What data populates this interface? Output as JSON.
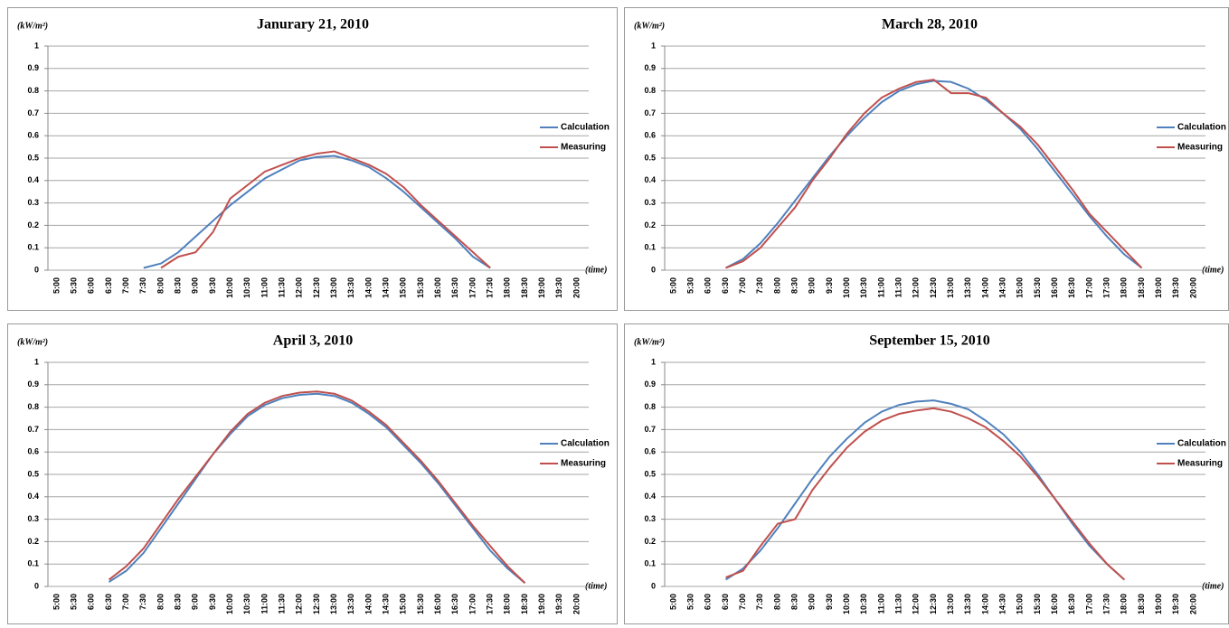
{
  "chart_data": [
    {
      "type": "line",
      "title": "Janurary  21,  2010",
      "y_label": "(kW/m²)",
      "x_label": "(time)",
      "categories": [
        "5:00",
        "5:30",
        "6:00",
        "6:30",
        "7:00",
        "7:30",
        "8:00",
        "8:30",
        "9:00",
        "9:30",
        "10:00",
        "10:30",
        "11:00",
        "11:30",
        "12:00",
        "12:30",
        "13:00",
        "13:30",
        "14:00",
        "14:30",
        "15:00",
        "15:30",
        "16:00",
        "16:30",
        "17:00",
        "17:30",
        "18:00",
        "18:30",
        "19:00",
        "19:30",
        "20:00"
      ],
      "ylim": [
        0,
        1
      ],
      "yticks": [
        0,
        0.1,
        0.2,
        0.3,
        0.4,
        0.5,
        0.6,
        0.7,
        0.8,
        0.9,
        1
      ],
      "grid": true,
      "legend": "right",
      "series": [
        {
          "name": "Calculation",
          "color": "#4f81bd",
          "values": [
            null,
            null,
            null,
            null,
            null,
            0.01,
            0.03,
            0.08,
            0.15,
            0.22,
            0.29,
            0.35,
            0.41,
            0.45,
            0.49,
            0.505,
            0.51,
            0.49,
            0.46,
            0.41,
            0.35,
            0.28,
            0.21,
            0.14,
            0.06,
            0.01,
            null,
            null,
            null,
            null,
            null
          ]
        },
        {
          "name": "Measuring",
          "color": "#c0504d",
          "values": [
            null,
            null,
            null,
            null,
            null,
            null,
            0.01,
            0.06,
            0.08,
            0.17,
            0.32,
            0.38,
            0.44,
            0.47,
            0.5,
            0.52,
            0.53,
            0.5,
            0.47,
            0.43,
            0.37,
            0.29,
            0.22,
            0.15,
            0.08,
            0.01,
            null,
            null,
            null,
            null,
            null
          ]
        }
      ]
    },
    {
      "type": "line",
      "title": "March  28,  2010",
      "y_label": "(kW/m²)",
      "x_label": "(time)",
      "categories": [
        "5:00",
        "5:30",
        "6:00",
        "6:30",
        "7:00",
        "7:30",
        "8:00",
        "8:30",
        "9:00",
        "9:30",
        "10:00",
        "10:30",
        "11:00",
        "11:30",
        "12:00",
        "12:30",
        "13:00",
        "13:30",
        "14:00",
        "14:30",
        "15:00",
        "15:30",
        "16:00",
        "16:30",
        "17:00",
        "17:30",
        "18:00",
        "18:30",
        "19:00",
        "19:30",
        "20:00"
      ],
      "ylim": [
        0,
        1
      ],
      "yticks": [
        0,
        0.1,
        0.2,
        0.3,
        0.4,
        0.5,
        0.6,
        0.7,
        0.8,
        0.9,
        1
      ],
      "grid": true,
      "legend": "right",
      "series": [
        {
          "name": "Calculation",
          "color": "#4f81bd",
          "values": [
            null,
            null,
            null,
            0.01,
            0.05,
            0.12,
            0.21,
            0.31,
            0.41,
            0.51,
            0.6,
            0.68,
            0.75,
            0.8,
            0.83,
            0.845,
            0.84,
            0.81,
            0.76,
            0.7,
            0.63,
            0.54,
            0.44,
            0.34,
            0.24,
            0.15,
            0.07,
            0.01,
            null,
            null,
            null
          ]
        },
        {
          "name": "Measuring",
          "color": "#c0504d",
          "values": [
            null,
            null,
            null,
            0.01,
            0.04,
            0.1,
            0.19,
            0.28,
            0.4,
            0.5,
            0.61,
            0.7,
            0.77,
            0.81,
            0.84,
            0.85,
            0.79,
            0.79,
            0.77,
            0.7,
            0.64,
            0.56,
            0.46,
            0.36,
            0.25,
            0.17,
            0.09,
            0.01,
            null,
            null,
            null
          ]
        }
      ]
    },
    {
      "type": "line",
      "title": "April  3,  2010",
      "y_label": "(kW/m²)",
      "x_label": "(time)",
      "categories": [
        "5:00",
        "5:30",
        "6:00",
        "6:30",
        "7:00",
        "7:30",
        "8:00",
        "8:30",
        "9:00",
        "9:30",
        "10:00",
        "10:30",
        "11:00",
        "11:30",
        "12:00",
        "12:30",
        "13:00",
        "13:30",
        "14:00",
        "14:30",
        "15:00",
        "15:30",
        "16:00",
        "16:30",
        "17:00",
        "17:30",
        "18:00",
        "18:30",
        "19:00",
        "19:30",
        "20:00"
      ],
      "ylim": [
        0,
        1
      ],
      "yticks": [
        0,
        0.1,
        0.2,
        0.3,
        0.4,
        0.5,
        0.6,
        0.7,
        0.8,
        0.9,
        1
      ],
      "grid": true,
      "legend": "right",
      "series": [
        {
          "name": "Calculation",
          "color": "#4f81bd",
          "values": [
            null,
            null,
            null,
            0.02,
            0.07,
            0.15,
            0.26,
            0.37,
            0.48,
            0.59,
            0.68,
            0.76,
            0.81,
            0.84,
            0.855,
            0.86,
            0.85,
            0.82,
            0.77,
            0.71,
            0.63,
            0.55,
            0.46,
            0.36,
            0.26,
            0.16,
            0.08,
            0.015,
            null,
            null,
            null
          ]
        },
        {
          "name": "Measuring",
          "color": "#c0504d",
          "values": [
            null,
            null,
            null,
            0.03,
            0.09,
            0.17,
            0.28,
            0.39,
            0.49,
            0.59,
            0.69,
            0.77,
            0.82,
            0.85,
            0.865,
            0.87,
            0.86,
            0.83,
            0.78,
            0.72,
            0.64,
            0.56,
            0.47,
            0.37,
            0.27,
            0.18,
            0.09,
            0.015,
            null,
            null,
            null
          ]
        }
      ]
    },
    {
      "type": "line",
      "title": "September 15,  2010",
      "y_label": "(kW/m²)",
      "x_label": "(time)",
      "categories": [
        "5:00",
        "5:30",
        "6:00",
        "6:30",
        "7:00",
        "7:30",
        "8:00",
        "8:30",
        "9:00",
        "9:30",
        "10:00",
        "10:30",
        "11:00",
        "11:30",
        "12:00",
        "12:30",
        "13:00",
        "13:30",
        "14:00",
        "14:30",
        "15:00",
        "15:30",
        "16:00",
        "16:30",
        "17:00",
        "17:30",
        "18:00",
        "18:30",
        "19:00",
        "19:30",
        "20:00"
      ],
      "ylim": [
        0,
        1
      ],
      "yticks": [
        0,
        0.1,
        0.2,
        0.3,
        0.4,
        0.5,
        0.6,
        0.7,
        0.8,
        0.9,
        1
      ],
      "grid": true,
      "legend": "right",
      "series": [
        {
          "name": "Calculation",
          "color": "#4f81bd",
          "values": [
            null,
            null,
            null,
            0.03,
            0.08,
            0.16,
            0.26,
            0.37,
            0.48,
            0.58,
            0.66,
            0.73,
            0.78,
            0.81,
            0.825,
            0.83,
            0.815,
            0.79,
            0.74,
            0.68,
            0.6,
            0.5,
            0.39,
            0.28,
            0.18,
            0.1,
            0.03,
            null,
            null,
            null,
            null
          ]
        },
        {
          "name": "Measuring",
          "color": "#c0504d",
          "values": [
            null,
            null,
            null,
            0.04,
            0.07,
            0.18,
            0.28,
            0.3,
            0.43,
            0.53,
            0.62,
            0.69,
            0.74,
            0.77,
            0.785,
            0.795,
            0.78,
            0.75,
            0.71,
            0.65,
            0.58,
            0.49,
            0.39,
            0.29,
            0.19,
            0.1,
            0.03,
            null,
            null,
            null,
            null
          ]
        }
      ]
    }
  ]
}
